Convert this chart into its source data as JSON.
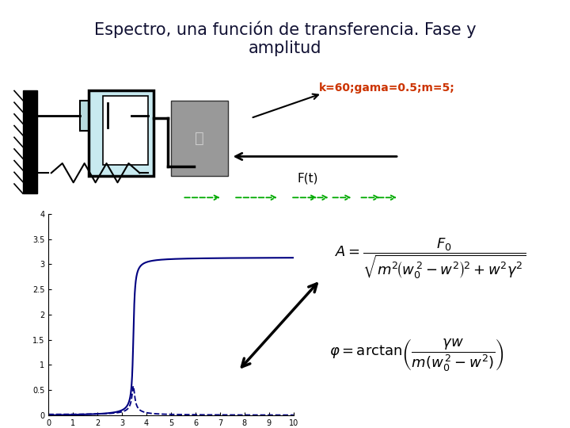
{
  "title_line1": "Espectro, una función de transferencia. Fase y",
  "title_line2": "amplitud",
  "title_bg_color": "#aed6d8",
  "bg_color": "#ffffff",
  "params_text": "k=60;gama=0.5;m=5;",
  "params_color": "#cc3300",
  "ft_label": "F(t)",
  "k": 60,
  "gama": 0.5,
  "m": 5,
  "F0": 1,
  "xlim": [
    0,
    10
  ],
  "ylim": [
    0,
    4
  ],
  "xticks": [
    0,
    1,
    2,
    3,
    4,
    5,
    6,
    7,
    8,
    9,
    10
  ],
  "ytick_vals": [
    0,
    0.5,
    1.0,
    1.5,
    2.0,
    2.5,
    3.0,
    3.5,
    4.0
  ],
  "ytick_labels": [
    "0",
    "0.5",
    "1",
    "1.5",
    "2",
    "2.5",
    "3",
    "3.5",
    "4"
  ],
  "plot_color": "#000080"
}
